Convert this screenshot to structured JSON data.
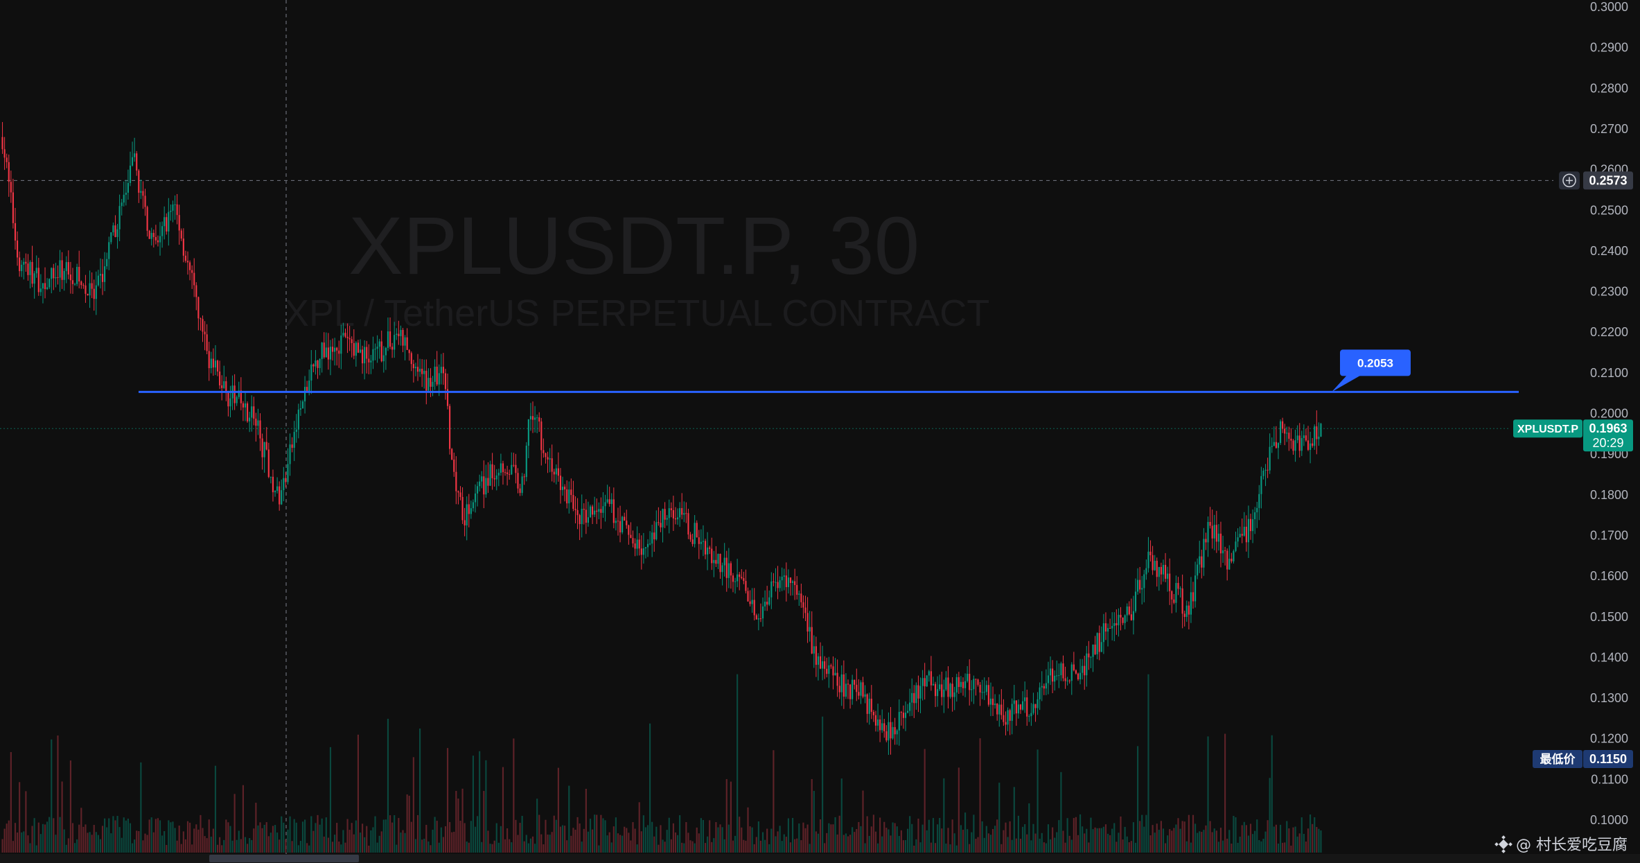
{
  "chart_data": {
    "type": "candlestick",
    "title": "XPLUSDT.P, 30",
    "subtitle": "XPL / TetherUS PERPETUAL CONTRACT",
    "y_axis": {
      "range": [
        0.1,
        0.3
      ],
      "ticks": [
        "0.3000",
        "0.2900",
        "0.2800",
        "0.2700",
        "0.2600",
        "0.2500",
        "0.2400",
        "0.2300",
        "0.2200",
        "0.2100",
        "0.2000",
        "0.1900",
        "0.1800",
        "0.1700",
        "0.1600",
        "0.1500",
        "0.1400",
        "0.1300",
        "0.1200",
        "0.1100",
        "0.1000"
      ]
    },
    "grid": false,
    "price_path": [
      [
        0,
        0.268
      ],
      [
        0.012,
        0.238
      ],
      [
        0.03,
        0.232
      ],
      [
        0.05,
        0.236
      ],
      [
        0.07,
        0.228
      ],
      [
        0.085,
        0.245
      ],
      [
        0.1,
        0.262
      ],
      [
        0.115,
        0.24
      ],
      [
        0.13,
        0.252
      ],
      [
        0.145,
        0.23
      ],
      [
        0.155,
        0.215
      ],
      [
        0.17,
        0.205
      ],
      [
        0.19,
        0.2
      ],
      [
        0.21,
        0.178
      ],
      [
        0.225,
        0.2
      ],
      [
        0.24,
        0.215
      ],
      [
        0.26,
        0.218
      ],
      [
        0.28,
        0.213
      ],
      [
        0.3,
        0.22
      ],
      [
        0.32,
        0.208
      ],
      [
        0.335,
        0.21
      ],
      [
        0.34,
        0.19
      ],
      [
        0.35,
        0.175
      ],
      [
        0.365,
        0.183
      ],
      [
        0.38,
        0.188
      ],
      [
        0.395,
        0.182
      ],
      [
        0.4,
        0.203
      ],
      [
        0.41,
        0.192
      ],
      [
        0.425,
        0.181
      ],
      [
        0.44,
        0.174
      ],
      [
        0.46,
        0.177
      ],
      [
        0.48,
        0.168
      ],
      [
        0.49,
        0.166
      ],
      [
        0.505,
        0.178
      ],
      [
        0.52,
        0.172
      ],
      [
        0.54,
        0.165
      ],
      [
        0.56,
        0.158
      ],
      [
        0.575,
        0.15
      ],
      [
        0.585,
        0.16
      ],
      [
        0.6,
        0.158
      ],
      [
        0.615,
        0.142
      ],
      [
        0.63,
        0.134
      ],
      [
        0.65,
        0.132
      ],
      [
        0.67,
        0.122
      ],
      [
        0.685,
        0.126
      ],
      [
        0.7,
        0.134
      ],
      [
        0.72,
        0.132
      ],
      [
        0.74,
        0.134
      ],
      [
        0.76,
        0.126
      ],
      [
        0.78,
        0.128
      ],
      [
        0.8,
        0.137
      ],
      [
        0.82,
        0.137
      ],
      [
        0.84,
        0.149
      ],
      [
        0.855,
        0.151
      ],
      [
        0.87,
        0.165
      ],
      [
        0.885,
        0.158
      ],
      [
        0.9,
        0.151
      ],
      [
        0.915,
        0.173
      ],
      [
        0.93,
        0.162
      ],
      [
        0.945,
        0.172
      ],
      [
        0.96,
        0.188
      ],
      [
        0.97,
        0.196
      ],
      [
        0.985,
        0.191
      ],
      [
        1.0,
        0.197
      ]
    ],
    "horizontal_line": {
      "value": 0.2053,
      "label": "0.2053",
      "color": "#2962ff"
    },
    "crosshair": {
      "value_label": "0.2573",
      "value": 0.2573
    },
    "last_price": {
      "symbol": "XPLUSDT.P",
      "value": "0.1963",
      "countdown": "20:29",
      "color": "#089981"
    },
    "low_price": {
      "label": "最低价",
      "value": "0.1150",
      "color": "#1e3a72"
    },
    "colors": {
      "up": "#089981",
      "down": "#f23645",
      "background": "#0f0f0f"
    }
  },
  "footer": {
    "watermark": "@ 村长爱吃豆腐"
  }
}
